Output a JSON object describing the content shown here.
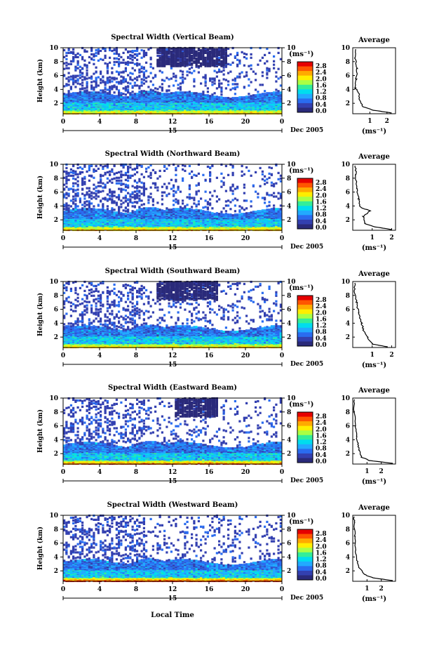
{
  "figure": {
    "x_axis_label": "Local Time",
    "date_label": "Dec 2005",
    "day_label": "15",
    "units_label": "(ms⁻¹)",
    "y_axis_label": "Height (km)",
    "avg_title": "Average",
    "avg_xlabel": "(ms⁻¹)"
  },
  "colorbar": {
    "ticks": [
      "2.8",
      "2.4",
      "2.0",
      "1.6",
      "1.2",
      "0.8",
      "0.4",
      "0.0"
    ],
    "colors": [
      "#e60000",
      "#ff5500",
      "#ffaa00",
      "#ffee00",
      "#aaff44",
      "#33ee99",
      "#00ddee",
      "#22aaff",
      "#2a6cf0",
      "#3340b0",
      "#2a2a7a"
    ]
  },
  "chart_data": [
    {
      "type": "heatmap",
      "title": "Spectral Width (Vertical Beam)",
      "xlabel": "",
      "ylabel": "Height (km)",
      "x_ticks": [
        "0",
        "4",
        "8",
        "12",
        "16",
        "20",
        "0"
      ],
      "y_ticks": [
        "2",
        "4",
        "6",
        "8",
        "10"
      ],
      "xlim": [
        0,
        24
      ],
      "ylim": [
        0.5,
        10
      ],
      "colorbar_range": [
        0.0,
        2.8
      ],
      "average_profile": {
        "x_ticks": [
          "1",
          "2"
        ],
        "xlim": [
          0,
          2.5
        ],
        "profile": [
          [
            2.3,
            0.6
          ],
          [
            1.2,
            1.0
          ],
          [
            0.6,
            1.5
          ],
          [
            0.4,
            2.5
          ],
          [
            0.35,
            3.5
          ],
          [
            0.15,
            4.2
          ],
          [
            0.2,
            5.5
          ],
          [
            0.25,
            7.0
          ],
          [
            0.15,
            8.5
          ],
          [
            0.2,
            9.8
          ]
        ]
      }
    },
    {
      "type": "heatmap",
      "title": "Spectral Width (Northward Beam)",
      "xlabel": "",
      "ylabel": "Height (km)",
      "x_ticks": [
        "0",
        "4",
        "8",
        "12",
        "16",
        "20",
        "0"
      ],
      "y_ticks": [
        "2",
        "4",
        "6",
        "8",
        "10"
      ],
      "xlim": [
        0,
        24
      ],
      "ylim": [
        0.5,
        10
      ],
      "colorbar_range": [
        0.0,
        2.8
      ],
      "average_profile": {
        "x_ticks": [
          "1",
          "2"
        ],
        "xlim": [
          0,
          2.2
        ],
        "profile": [
          [
            2.0,
            0.6
          ],
          [
            1.1,
            1.0
          ],
          [
            0.6,
            1.5
          ],
          [
            0.55,
            2.5
          ],
          [
            0.9,
            3.3
          ],
          [
            0.4,
            3.8
          ],
          [
            0.3,
            5.0
          ],
          [
            0.2,
            6.5
          ],
          [
            0.15,
            8.5
          ],
          [
            0.15,
            9.8
          ]
        ]
      }
    },
    {
      "type": "heatmap",
      "title": "Spectral Width (Southward Beam)",
      "xlabel": "",
      "ylabel": "Height (km)",
      "x_ticks": [
        "0",
        "4",
        "8",
        "12",
        "16",
        "20",
        "0"
      ],
      "y_ticks": [
        "2",
        "4",
        "6",
        "8",
        "10"
      ],
      "xlim": [
        0,
        24
      ],
      "ylim": [
        0.5,
        10
      ],
      "colorbar_range": [
        0.0,
        2.8
      ],
      "average_profile": {
        "x_ticks": [
          "1",
          "2"
        ],
        "xlim": [
          0,
          2.2
        ],
        "profile": [
          [
            1.8,
            0.6
          ],
          [
            1.0,
            1.0
          ],
          [
            0.75,
            2.0
          ],
          [
            0.55,
            3.0
          ],
          [
            0.45,
            4.0
          ],
          [
            0.3,
            5.5
          ],
          [
            0.2,
            7.0
          ],
          [
            0.1,
            8.5
          ],
          [
            0.1,
            9.8
          ]
        ]
      }
    },
    {
      "type": "heatmap",
      "title": "Spectral Width (Eastward Beam)",
      "xlabel": "",
      "ylabel": "Height (km)",
      "x_ticks": [
        "0",
        "4",
        "8",
        "12",
        "16",
        "20",
        "0"
      ],
      "y_ticks": [
        "2",
        "4",
        "6",
        "8",
        "10"
      ],
      "xlim": [
        0,
        24
      ],
      "ylim": [
        0.5,
        10
      ],
      "colorbar_range": [
        0.0,
        2.8
      ],
      "average_profile": {
        "x_ticks": [
          "1",
          "2"
        ],
        "xlim": [
          0,
          3.0
        ],
        "profile": [
          [
            2.8,
            0.6
          ],
          [
            1.2,
            1.0
          ],
          [
            0.6,
            1.5
          ],
          [
            0.45,
            2.5
          ],
          [
            0.35,
            3.5
          ],
          [
            0.25,
            4.5
          ],
          [
            0.2,
            6.0
          ],
          [
            0.1,
            8.0
          ],
          [
            0.1,
            9.8
          ]
        ]
      }
    },
    {
      "type": "heatmap",
      "title": "Spectral Width (Westward Beam)",
      "xlabel": "Local Time",
      "ylabel": "Height (km)",
      "x_ticks": [
        "0",
        "4",
        "8",
        "12",
        "16",
        "20",
        "0"
      ],
      "y_ticks": [
        "2",
        "4",
        "6",
        "8",
        "10"
      ],
      "xlim": [
        0,
        24
      ],
      "ylim": [
        0.5,
        10
      ],
      "colorbar_range": [
        0.0,
        2.8
      ],
      "average_profile": {
        "x_ticks": [
          "1",
          "2"
        ],
        "xlim": [
          0,
          3.0
        ],
        "profile": [
          [
            2.8,
            0.6
          ],
          [
            1.4,
            1.0
          ],
          [
            0.8,
            1.5
          ],
          [
            0.45,
            2.5
          ],
          [
            0.3,
            3.5
          ],
          [
            0.2,
            5.0
          ],
          [
            0.15,
            7.0
          ],
          [
            0.1,
            9.0
          ],
          [
            0.1,
            9.8
          ]
        ]
      }
    }
  ]
}
